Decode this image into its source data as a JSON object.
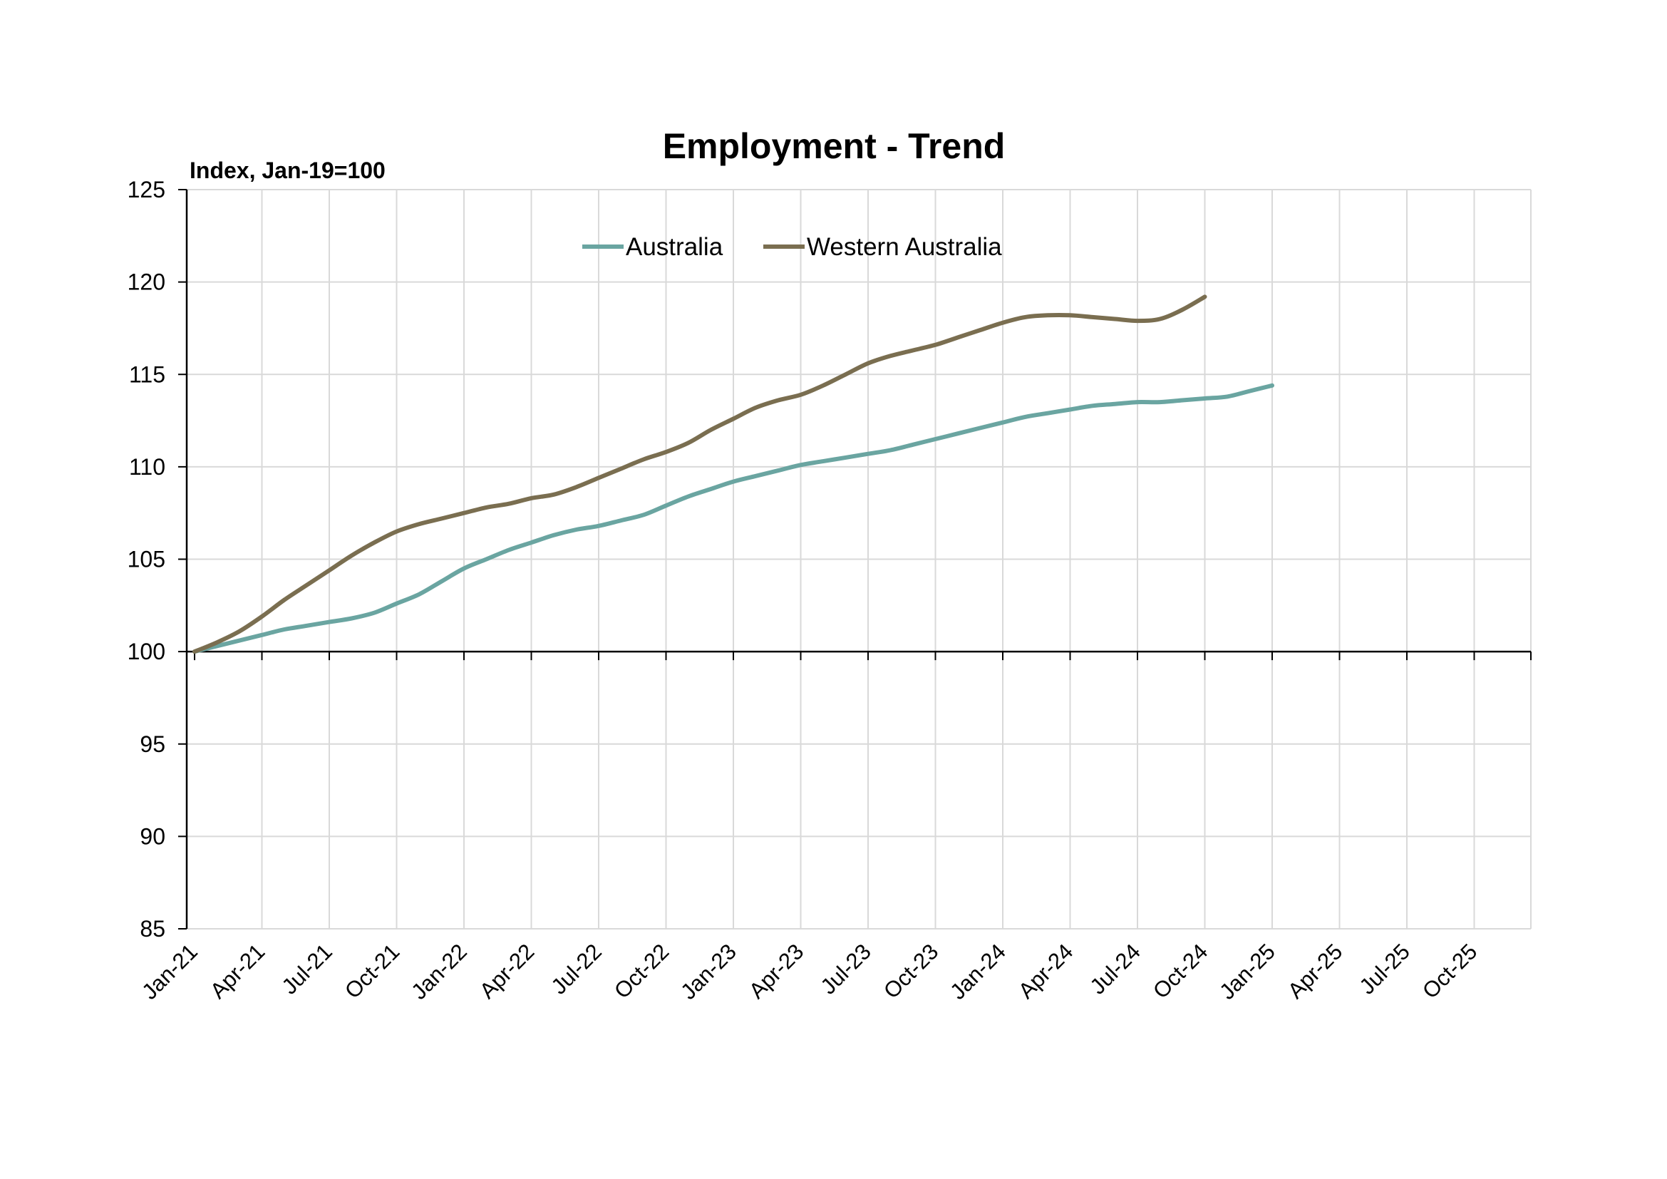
{
  "chart_data": {
    "type": "line",
    "title": "Employment - Trend",
    "ylabel": "Index, Jan-19=100",
    "xlabel": "",
    "ylim": [
      85,
      125
    ],
    "yticks": [
      85,
      90,
      95,
      100,
      105,
      110,
      115,
      120,
      125
    ],
    "x_tick_labels": [
      "Jan-21",
      "Apr-21",
      "Jul-21",
      "Oct-21",
      "Jan-22",
      "Apr-22",
      "Jul-22",
      "Oct-22",
      "Jan-23",
      "Apr-23",
      "Jul-23",
      "Oct-23",
      "Jan-24",
      "Apr-24",
      "Jul-24",
      "Oct-24",
      "Jan-25",
      "Apr-25",
      "Jul-25",
      "Oct-25"
    ],
    "grid": true,
    "legend_position": "top-center",
    "series": [
      {
        "name": "Australia",
        "color": "#6aa5a1",
        "values": [
          100.0,
          100.3,
          100.6,
          100.9,
          101.2,
          101.4,
          101.6,
          101.8,
          102.1,
          102.6,
          103.1,
          103.8,
          104.5,
          105.0,
          105.5,
          105.9,
          106.3,
          106.6,
          106.8,
          107.1,
          107.4,
          107.9,
          108.4,
          108.8,
          109.2,
          109.5,
          109.8,
          110.1,
          110.3,
          110.5,
          110.7,
          110.9,
          111.2,
          111.5,
          111.8,
          112.1,
          112.4,
          112.7,
          112.9,
          113.1,
          113.3,
          113.4,
          113.5,
          113.5,
          113.6,
          113.7,
          113.8,
          114.1,
          114.4
        ]
      },
      {
        "name": "Western Australia",
        "color": "#7a6e50",
        "values": [
          100.0,
          100.5,
          101.1,
          101.9,
          102.8,
          103.6,
          104.4,
          105.2,
          105.9,
          106.5,
          106.9,
          107.2,
          107.5,
          107.8,
          108.0,
          108.3,
          108.5,
          108.9,
          109.4,
          109.9,
          110.4,
          110.8,
          111.3,
          112.0,
          112.6,
          113.2,
          113.6,
          113.9,
          114.4,
          115.0,
          115.6,
          116.0,
          116.3,
          116.6,
          117.0,
          117.4,
          117.8,
          118.1,
          118.2,
          118.2,
          118.1,
          118.0,
          117.9,
          118.0,
          118.5,
          119.2
        ]
      }
    ]
  }
}
